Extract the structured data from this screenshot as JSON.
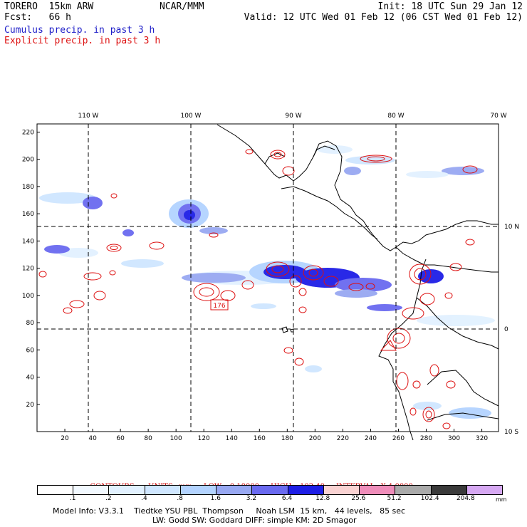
{
  "header": {
    "model": "TORERO  15km ARW",
    "forecast": "Fcst:   66 h",
    "center": "NCAR/MMM",
    "init": "Init: 18 UTC Sun 29 Jan 12",
    "valid": "Valid: 12 UTC Wed 01 Feb 12 (06 CST Wed 01 Feb 12)",
    "cumulus_label": "Cumulus precip. in past 3 h",
    "explicit_label": "Explicit precip. in past 3 h"
  },
  "colors": {
    "cumulus_text": "#1e1ec8",
    "explicit_text": "#dd1010",
    "explicit_contour": "#dd1010"
  },
  "map": {
    "lon_labels": [
      "110 W",
      "100 W",
      "90 W",
      "80 W",
      "70 W"
    ],
    "lat_labels": [
      "10 N",
      "0",
      "10 S"
    ],
    "x_ticks": [
      "20",
      "40",
      "60",
      "80",
      "100",
      "120",
      "140",
      "160",
      "180",
      "200",
      "220",
      "240",
      "260",
      "280",
      "300",
      "320"
    ],
    "y_ticks": [
      "20",
      "40",
      "60",
      "80",
      "100",
      "120",
      "140",
      "160",
      "180",
      "200",
      "220"
    ],
    "x_range": [
      0,
      332
    ],
    "y_range": [
      0,
      226
    ],
    "max_label": "176"
  },
  "contours": {
    "title": "CONTOURS:",
    "units": "UNITS=mm",
    "low": "LOW= 0.10000",
    "high": "HIGH= 102.40",
    "interval": "INTERVAL=X 4.0000"
  },
  "colorbar": {
    "labels": [
      ".1",
      ".2",
      ".4",
      ".8",
      "1.6",
      "3.2",
      "6.4",
      "12.8",
      "25.6",
      "51.2",
      "102.4",
      "204.8"
    ],
    "unit": "mm",
    "colors": [
      "#ffffff",
      "#f2f9ff",
      "#e2f1ff",
      "#cfe6ff",
      "#b3d3ff",
      "#98a8f2",
      "#6a6af0",
      "#1e1ee6",
      "#f9d2d2",
      "#ef8dba",
      "#aaaaaa",
      "#3a3a3a",
      "#d6a8f2"
    ]
  },
  "footer": {
    "line1": "Model Info: V3.3.1    Tiedtke YSU PBL  Thompson     Noah LSM  15 km,   44 levels,   85 sec",
    "line2": "LW: Godd SW: Goddard DIFF: simple KM: 2D Smagor"
  }
}
